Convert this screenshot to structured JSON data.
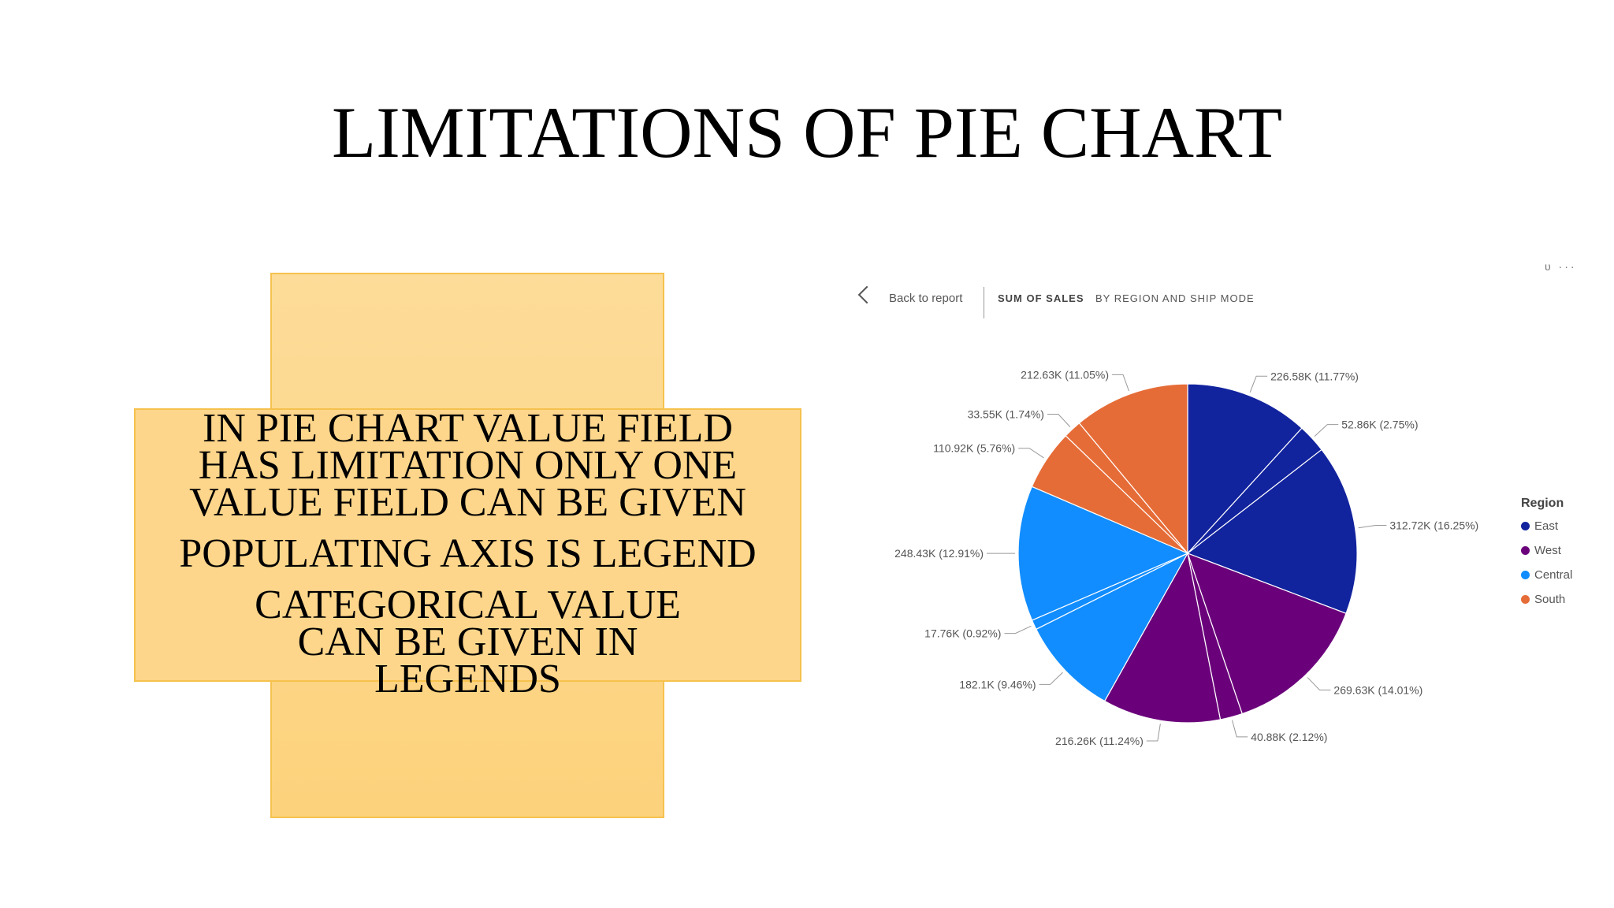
{
  "slide": {
    "title": "LIMITATIONS OF PIE CHART",
    "points": [
      "IN PIE CHART VALUE FIELD HAS LIMITATION ONLY ONE VALUE FIELD CAN BE GIVEN",
      "POPULATING AXIS IS LEGEND",
      "CATEGORICAL VALUE CAN BE GIVEN IN LEGENDS"
    ]
  },
  "report": {
    "back_label": "Back to report",
    "visual_title": "SUM OF SALES",
    "visual_subtitle": "BY REGION AND SHIP MODE",
    "corner_icons": [
      "filter-icon",
      "more-options-icon"
    ]
  },
  "chart_data": {
    "type": "pie",
    "legend_title": "Region",
    "legend_position": "right",
    "categories": [
      "East",
      "West",
      "Central",
      "South"
    ],
    "colors": {
      "East": "#12239e",
      "West": "#6b007b",
      "Central": "#118dff",
      "South": "#e66c37"
    },
    "slices": [
      {
        "region": "East",
        "value": 226.58,
        "label": "226.58K (11.77%)"
      },
      {
        "region": "East",
        "value": 52.86,
        "label": "52.86K (2.75%)"
      },
      {
        "region": "East",
        "value": 312.72,
        "label": "312.72K (16.25%)"
      },
      {
        "region": "West",
        "value": 269.63,
        "label": "269.63K (14.01%)"
      },
      {
        "region": "West",
        "value": 40.88,
        "label": "40.88K (2.12%)"
      },
      {
        "region": "West",
        "value": 216.26,
        "label": "216.26K (11.24%)"
      },
      {
        "region": "Central",
        "value": 182.1,
        "label": "182.1K (9.46%)"
      },
      {
        "region": "Central",
        "value": 17.76,
        "label": "17.76K (0.92%)"
      },
      {
        "region": "Central",
        "value": 248.43,
        "label": "248.43K (12.91%)"
      },
      {
        "region": "South",
        "value": 110.92,
        "label": "110.92K (5.76%)"
      },
      {
        "region": "South",
        "value": 33.55,
        "label": "33.55K (1.74%)"
      },
      {
        "region": "South",
        "value": 212.63,
        "label": "212.63K (11.05%)"
      }
    ]
  }
}
